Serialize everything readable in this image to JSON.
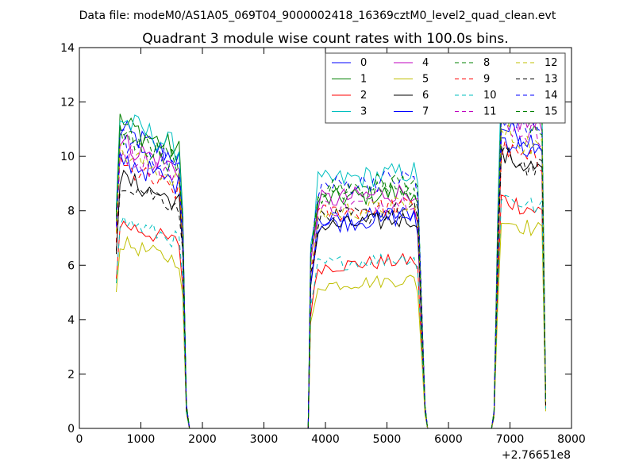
{
  "chart_data": {
    "type": "line",
    "suptitle": "Data file: modeM0/AS1A05_069T04_9000002418_16369cztM0_level2_quad_clean.evt",
    "title": "Quadrant 3 module wise count rates with 100.0s bins.",
    "xlabel": "",
    "ylabel": "",
    "x_offset_label": "+2.76651e8",
    "xlim": [
      0,
      8000
    ],
    "ylim": [
      0,
      14
    ],
    "xticks": [
      0,
      1000,
      2000,
      3000,
      4000,
      5000,
      6000,
      7000,
      8000
    ],
    "yticks": [
      0,
      2,
      4,
      6,
      8,
      10,
      12,
      14
    ],
    "legend_position": "top-right",
    "segments": [
      [
        600,
        1750
      ],
      [
        3760,
        5620
      ],
      [
        6740,
        7550
      ]
    ],
    "segment_profiles": [
      [
        0.75,
        0.88,
        0.94,
        0.97,
        1.0,
        1.0,
        1.0,
        1.0,
        1.0,
        1.0,
        1.0,
        1.0,
        1.0,
        1.0,
        1.0,
        0.97,
        0.92,
        0.55,
        0.0
      ],
      [
        0.0,
        0.0,
        0.0,
        0.0,
        0.0,
        0.0,
        0.0,
        0.0,
        0.0,
        0.0,
        0.0,
        0.0,
        0.0,
        0.0,
        0.0,
        0.0,
        0.0,
        0.0,
        0.0
      ]
    ],
    "gap_value": 0.0,
    "series": [
      {
        "name": "0",
        "color": "#0000ff",
        "dash": "solid",
        "levels": [
          10.6,
          7.8,
          10.4
        ]
      },
      {
        "name": "1",
        "color": "#008000",
        "dash": "solid",
        "levels": [
          10.9,
          8.6,
          11.1
        ]
      },
      {
        "name": "2",
        "color": "#ff0000",
        "dash": "solid",
        "levels": [
          7.3,
          6.1,
          7.9
        ]
      },
      {
        "name": "3",
        "color": "#00bfbf",
        "dash": "solid",
        "levels": [
          11.0,
          9.3,
          11.9
        ]
      },
      {
        "name": "4",
        "color": "#bf00bf",
        "dash": "solid",
        "levels": [
          10.2,
          8.6,
          10.9
        ]
      },
      {
        "name": "5",
        "color": "#bfbf00",
        "dash": "solid",
        "levels": [
          6.6,
          5.4,
          7.2
        ]
      },
      {
        "name": "6",
        "color": "#000000",
        "dash": "solid",
        "levels": [
          8.9,
          7.6,
          9.4
        ]
      },
      {
        "name": "7",
        "color": "#0000ff",
        "dash": "solid",
        "levels": [
          9.6,
          7.7,
          10.0
        ]
      },
      {
        "name": "8",
        "color": "#008000",
        "dash": "dashed",
        "levels": [
          10.5,
          9.0,
          11.3
        ]
      },
      {
        "name": "9",
        "color": "#ff0000",
        "dash": "dashed",
        "levels": [
          9.3,
          8.1,
          9.6
        ]
      },
      {
        "name": "10",
        "color": "#00bfbf",
        "dash": "dashed",
        "levels": [
          7.4,
          6.2,
          8.0
        ]
      },
      {
        "name": "11",
        "color": "#bf00bf",
        "dash": "dashed",
        "levels": [
          9.9,
          8.3,
          10.6
        ]
      },
      {
        "name": "12",
        "color": "#bfbf00",
        "dash": "dashed",
        "levels": [
          9.8,
          8.1,
          10.2
        ]
      },
      {
        "name": "13",
        "color": "#000000",
        "dash": "dashed",
        "levels": [
          8.8,
          7.9,
          9.4
        ]
      },
      {
        "name": "14",
        "color": "#0000ff",
        "dash": "dashed",
        "levels": [
          10.3,
          9.1,
          10.8
        ]
      },
      {
        "name": "15",
        "color": "#008000",
        "dash": "dashed",
        "levels": [
          10.4,
          8.8,
          11.0
        ]
      }
    ]
  }
}
